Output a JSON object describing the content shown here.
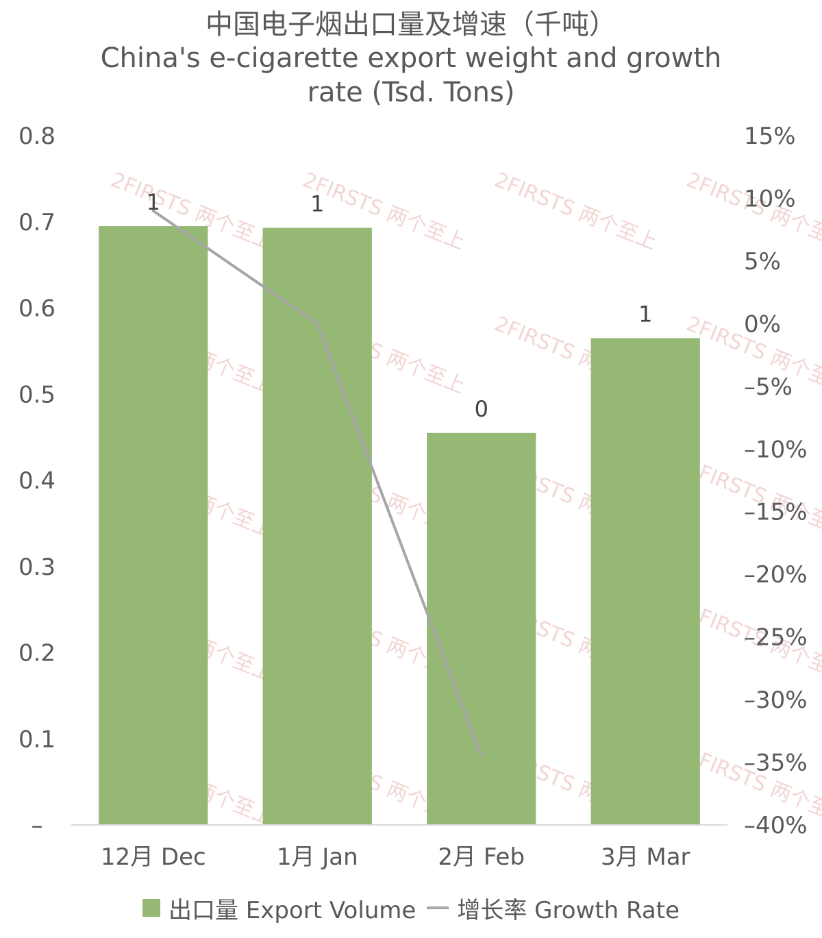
{
  "title": {
    "line1": "中国电子烟出口量及增速（千吨）",
    "line2": "China's e-cigarette export weight and growth",
    "line3": "rate (Tsd. Tons)"
  },
  "colors": {
    "bar": "#95b975",
    "line": "#a6a6a6",
    "axis": "#d9d9d9",
    "text": "#595959",
    "watermark": "#e8b4b4"
  },
  "watermark_text": "2FIRSTS 两个至上",
  "chart_data": {
    "type": "bar",
    "categories": [
      "12月 Dec",
      "1月 Jan",
      "2月 Feb",
      "3月 Mar"
    ],
    "series": [
      {
        "name": "出口量 Export Volume",
        "type": "bar",
        "axis": "left",
        "values": [
          0.695,
          0.693,
          0.455,
          0.565
        ],
        "data_labels": [
          "1",
          "1",
          "0",
          "1"
        ]
      },
      {
        "name": "增长率 Growth Rate",
        "type": "line",
        "axis": "right",
        "values": [
          9.0,
          0.0,
          -34.5,
          null
        ]
      }
    ],
    "y_left": {
      "lim": [
        0,
        0.8
      ],
      "ticks": [
        0,
        0.1,
        0.2,
        0.3,
        0.4,
        0.5,
        0.6,
        0.7,
        0.8
      ],
      "tick_labels": [
        "–",
        "0.1",
        "0.2",
        "0.3",
        "0.4",
        "0.5",
        "0.6",
        "0.7",
        "0.8"
      ]
    },
    "y_right": {
      "lim": [
        -40,
        15
      ],
      "ticks": [
        -40,
        -35,
        -30,
        -25,
        -20,
        -15,
        -10,
        -5,
        0,
        5,
        10,
        15
      ],
      "tick_labels": [
        "–40%",
        "–35%",
        "–30%",
        "–25%",
        "–20%",
        "–15%",
        "–10%",
        "–5%",
        "0%",
        "5%",
        "10%",
        "15%"
      ]
    },
    "grid": false,
    "legend": "bottom"
  }
}
